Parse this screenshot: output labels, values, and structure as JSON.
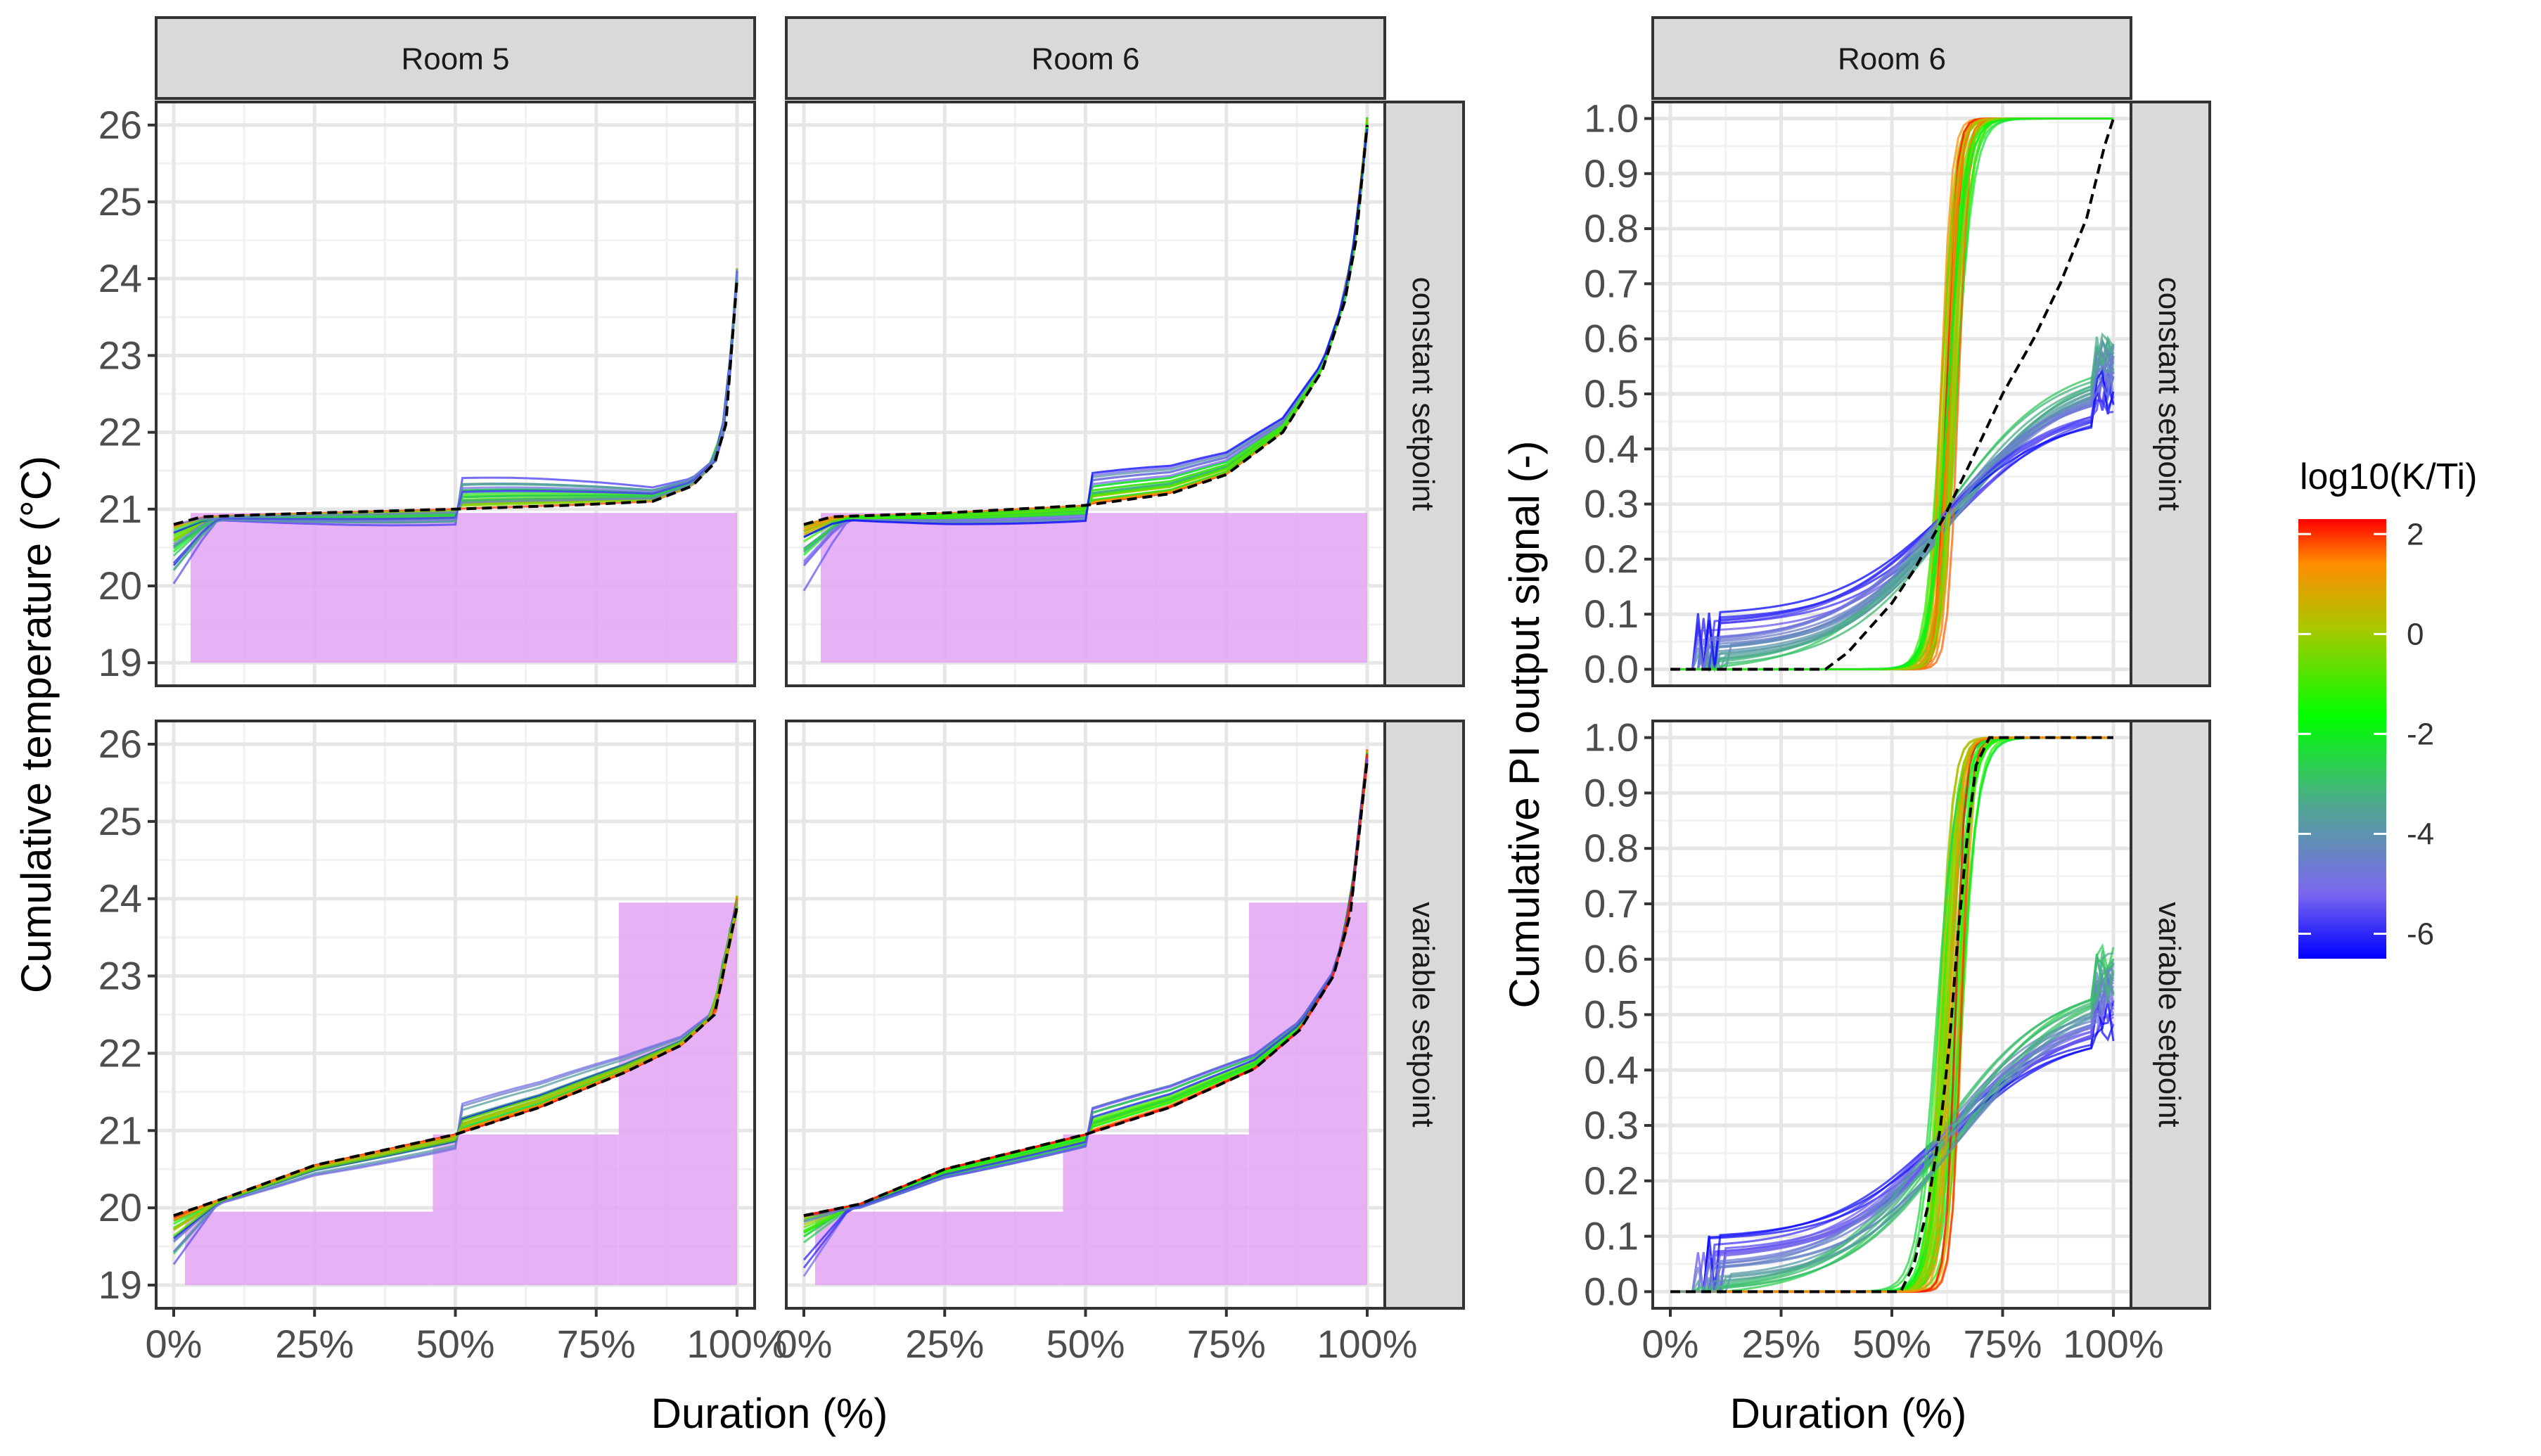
{
  "chart_data": [
    {
      "type": "line",
      "panel": "left",
      "columns": [
        "Room 5",
        "Room 6"
      ],
      "rows": [
        "constant setpoint",
        "variable setpoint"
      ],
      "xlabel": "Duration (%)",
      "ylabel": "Cumulative temperature (°C)",
      "x_ticks": [
        "0%",
        "25%",
        "50%",
        "75%",
        "100%"
      ],
      "y_ticks": [
        "19",
        "20",
        "21",
        "22",
        "23",
        "24",
        "25",
        "26"
      ],
      "xlim": [
        0,
        100
      ],
      "ylim": [
        18.7,
        26.3
      ],
      "reference_series": {
        "name": "reference (dashed)",
        "facets": {
          "Room 5|constant setpoint": {
            "x": [
              0,
              5,
              25,
              50,
              70,
              85,
              92,
              96,
              98,
              100
            ],
            "y": [
              20.8,
              20.9,
              20.95,
              21.0,
              21.05,
              21.1,
              21.3,
              21.6,
              22.1,
              24.0
            ]
          },
          "Room 6|constant setpoint": {
            "x": [
              0,
              5,
              25,
              50,
              65,
              75,
              85,
              92,
              96,
              98,
              100
            ],
            "y": [
              20.8,
              20.9,
              20.95,
              21.05,
              21.2,
              21.45,
              22.0,
              22.8,
              23.7,
              24.5,
              26.0
            ]
          },
          "Room 5|variable setpoint": {
            "x": [
              0,
              10,
              25,
              50,
              65,
              80,
              90,
              96,
              100
            ],
            "y": [
              19.9,
              20.15,
              20.55,
              20.95,
              21.3,
              21.75,
              22.1,
              22.5,
              23.9
            ]
          },
          "Room 6|variable setpoint": {
            "x": [
              0,
              10,
              25,
              50,
              65,
              80,
              88,
              94,
              97,
              100
            ],
            "y": [
              19.9,
              20.05,
              20.5,
              20.95,
              21.3,
              21.8,
              22.3,
              23.0,
              23.8,
              25.8
            ]
          }
        }
      },
      "setpoint_bands": {
        "constant setpoint": [
          {
            "x0": 3,
            "x1": 100,
            "y0": 19.0,
            "y1": 20.95
          }
        ],
        "variable setpoint": [
          {
            "x0": 2,
            "x1": 46,
            "y0": 19.0,
            "y1": 19.95
          },
          {
            "x0": 46,
            "x1": 79,
            "y0": 19.0,
            "y1": 20.95
          },
          {
            "x0": 79,
            "x1": 100,
            "y0": 19.0,
            "y1": 23.95
          }
        ]
      },
      "setpoint_band_color": "#e3a3f5"
    },
    {
      "type": "line",
      "panel": "right",
      "columns": [
        "Room 6"
      ],
      "rows": [
        "constant setpoint",
        "variable setpoint"
      ],
      "xlabel": "Duration (%)",
      "ylabel": "Cumulative PI output signal (-)",
      "x_ticks": [
        "0%",
        "25%",
        "50%",
        "75%",
        "100%"
      ],
      "y_ticks": [
        "0.0",
        "0.1",
        "0.2",
        "0.3",
        "0.4",
        "0.5",
        "0.6",
        "0.7",
        "0.8",
        "0.9",
        "1.0"
      ],
      "xlim": [
        0,
        100
      ],
      "ylim": [
        -0.03,
        1.03
      ],
      "reference_series": {
        "name": "reference (dashed)",
        "facets": {
          "Room 6|constant setpoint": {
            "x": [
              0,
              35,
              40,
              50,
              55,
              62,
              68,
              75,
              82,
              88,
              94,
              98,
              100
            ],
            "y": [
              0.0,
              0.0,
              0.03,
              0.12,
              0.18,
              0.28,
              0.38,
              0.5,
              0.6,
              0.7,
              0.82,
              0.95,
              1.0
            ]
          },
          "Room 6|variable setpoint": {
            "x": [
              0,
              52,
              55,
              58,
              61,
              63,
              65,
              67,
              69,
              72,
              100
            ],
            "y": [
              0.0,
              0.0,
              0.05,
              0.15,
              0.3,
              0.45,
              0.65,
              0.82,
              0.95,
              1.0,
              1.0
            ]
          }
        }
      }
    }
  ],
  "legend": {
    "title": "log10(K/Ti)",
    "ticks": [
      "2",
      "0",
      "-2",
      "-4",
      "-6"
    ],
    "range": [
      -6.5,
      2.3
    ],
    "colors": {
      "blue": "#0000ff",
      "purple": "#8a6cd4",
      "teal": "#3cb08c",
      "green": "#00ff00",
      "orange": "#ff8c00",
      "red": "#ff0000"
    }
  }
}
